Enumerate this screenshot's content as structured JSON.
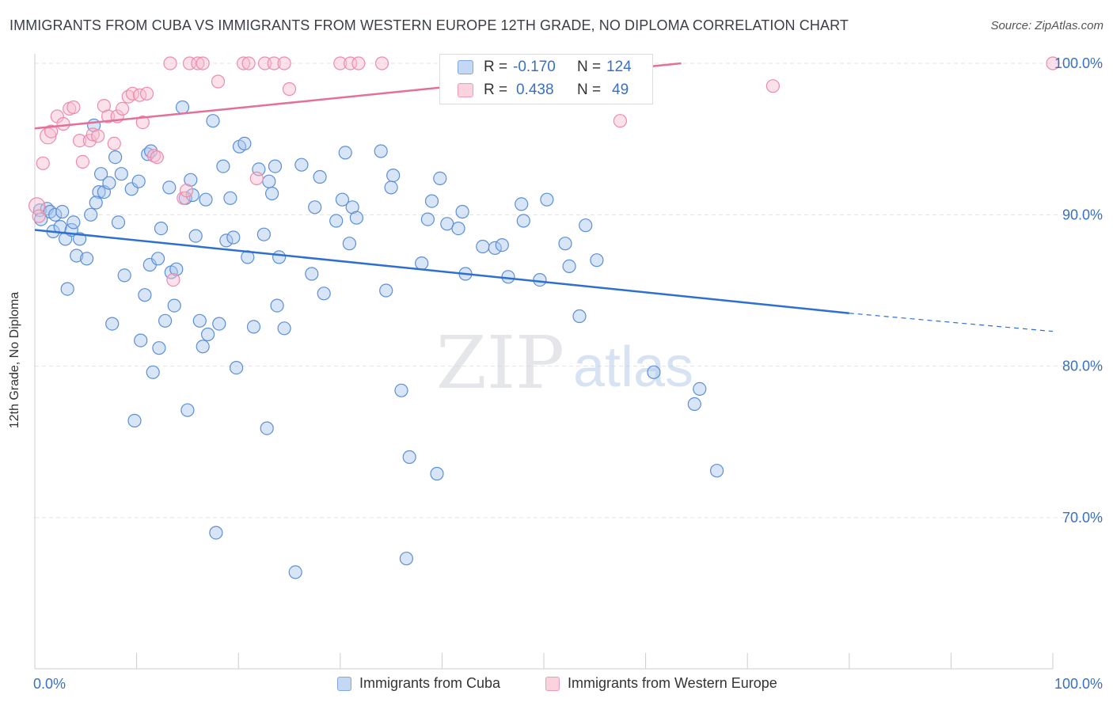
{
  "title": "IMMIGRANTS FROM CUBA VS IMMIGRANTS FROM WESTERN EUROPE 12TH GRADE, NO DIPLOMA CORRELATION CHART",
  "source": "Source: ZipAtlas.com",
  "watermark": {
    "zip": "ZIP",
    "atlas": "atlas"
  },
  "stats": {
    "r_label": "R =",
    "n_label": "N =",
    "rows": [
      {
        "r": "-0.170",
        "n": "124",
        "color": "#7fa8e0",
        "fill": "#c5d8f3"
      },
      {
        "r": "0.438",
        "n": "49",
        "color": "#f09ab5",
        "fill": "#fbd3df"
      }
    ]
  },
  "chart_data": {
    "type": "scatter",
    "title": "IMMIGRANTS FROM CUBA VS IMMIGRANTS FROM WESTERN EUROPE 12TH GRADE, NO DIPLOMA CORRELATION CHART",
    "xlabel": "",
    "ylabel": "12th Grade, No Diploma",
    "xlim": [
      0,
      100
    ],
    "ylim": [
      60,
      104
    ],
    "x_tick_labels": [
      "0.0%",
      "100.0%"
    ],
    "y_ticks": [
      70,
      80,
      90,
      100
    ],
    "y_tick_labels": [
      "70.0%",
      "80.0%",
      "90.0%",
      "100.0%"
    ],
    "grid": true,
    "legend_placement": "bottom",
    "series": [
      {
        "name": "Immigrants from Cuba",
        "color": "#5b8fd6",
        "fill": "#a9c6ee",
        "trend": {
          "x0": 0,
          "y0": 89.0,
          "x1": 80,
          "y1": 83.5,
          "dash_to_x": 100,
          "dash_to_y": 82.3
        },
        "points": [
          [
            0.5,
            90.3
          ],
          [
            0.6,
            89.7
          ],
          [
            1.2,
            90.4
          ],
          [
            1.5,
            90.2
          ],
          [
            1.8,
            88.9
          ],
          [
            2.0,
            90.0
          ],
          [
            2.5,
            89.2
          ],
          [
            2.7,
            90.2
          ],
          [
            3.0,
            88.4
          ],
          [
            3.2,
            85.1
          ],
          [
            3.6,
            89.0
          ],
          [
            3.8,
            89.5
          ],
          [
            4.1,
            87.3
          ],
          [
            4.4,
            88.4
          ],
          [
            5.1,
            87.1
          ],
          [
            5.5,
            90.0
          ],
          [
            5.8,
            95.9
          ],
          [
            6.3,
            91.5
          ],
          [
            6.5,
            92.7
          ],
          [
            6.8,
            91.5
          ],
          [
            7.3,
            92.1
          ],
          [
            7.6,
            82.8
          ],
          [
            7.9,
            93.8
          ],
          [
            8.2,
            89.5
          ],
          [
            8.5,
            92.7
          ],
          [
            8.8,
            86.0
          ],
          [
            9.5,
            91.7
          ],
          [
            9.8,
            76.4
          ],
          [
            10.2,
            92.2
          ],
          [
            10.4,
            81.7
          ],
          [
            10.8,
            84.7
          ],
          [
            11.1,
            94.0
          ],
          [
            11.3,
            86.7
          ],
          [
            11.6,
            79.6
          ],
          [
            12.1,
            87.1
          ],
          [
            12.2,
            81.2
          ],
          [
            12.4,
            89.1
          ],
          [
            12.8,
            83.0
          ],
          [
            13.2,
            91.8
          ],
          [
            13.4,
            86.2
          ],
          [
            13.7,
            84.0
          ],
          [
            13.9,
            86.4
          ],
          [
            14.5,
            97.1
          ],
          [
            14.8,
            91.1
          ],
          [
            15.0,
            77.1
          ],
          [
            15.3,
            92.3
          ],
          [
            15.5,
            91.3
          ],
          [
            15.8,
            88.6
          ],
          [
            16.2,
            83.0
          ],
          [
            16.5,
            81.3
          ],
          [
            16.8,
            91.0
          ],
          [
            17.0,
            82.1
          ],
          [
            17.5,
            96.2
          ],
          [
            17.8,
            69.0
          ],
          [
            18.1,
            82.8
          ],
          [
            18.5,
            93.2
          ],
          [
            18.8,
            88.3
          ],
          [
            19.2,
            91.1
          ],
          [
            19.5,
            88.5
          ],
          [
            19.8,
            79.9
          ],
          [
            20.1,
            94.5
          ],
          [
            20.6,
            94.7
          ],
          [
            20.9,
            87.2
          ],
          [
            21.5,
            82.6
          ],
          [
            22.0,
            93.0
          ],
          [
            22.5,
            88.7
          ],
          [
            22.8,
            75.9
          ],
          [
            23.0,
            92.2
          ],
          [
            23.3,
            91.4
          ],
          [
            23.6,
            93.2
          ],
          [
            23.8,
            84.0
          ],
          [
            24.0,
            87.2
          ],
          [
            24.5,
            82.5
          ],
          [
            25.6,
            66.4
          ],
          [
            26.2,
            93.3
          ],
          [
            27.2,
            86.1
          ],
          [
            27.5,
            90.5
          ],
          [
            28.0,
            92.5
          ],
          [
            28.4,
            84.8
          ],
          [
            29.6,
            89.6
          ],
          [
            30.2,
            91.0
          ],
          [
            30.5,
            94.1
          ],
          [
            30.9,
            88.1
          ],
          [
            31.2,
            90.5
          ],
          [
            31.6,
            89.8
          ],
          [
            34.0,
            94.2
          ],
          [
            34.5,
            85.0
          ],
          [
            35.0,
            91.8
          ],
          [
            35.2,
            92.6
          ],
          [
            36.0,
            78.4
          ],
          [
            36.5,
            67.3
          ],
          [
            36.8,
            74.0
          ],
          [
            38.0,
            86.8
          ],
          [
            38.6,
            89.7
          ],
          [
            39.0,
            90.9
          ],
          [
            39.5,
            72.9
          ],
          [
            39.8,
            92.4
          ],
          [
            40.5,
            89.4
          ],
          [
            41.6,
            89.1
          ],
          [
            42.0,
            90.2
          ],
          [
            42.3,
            86.1
          ],
          [
            44.0,
            87.9
          ],
          [
            45.2,
            87.8
          ],
          [
            45.9,
            88.0
          ],
          [
            46.5,
            85.9
          ],
          [
            47.8,
            90.7
          ],
          [
            48.0,
            89.6
          ],
          [
            49.6,
            85.7
          ],
          [
            50.3,
            91.0
          ],
          [
            52.1,
            88.1
          ],
          [
            52.5,
            86.6
          ],
          [
            53.5,
            83.3
          ],
          [
            54.1,
            89.3
          ],
          [
            55.2,
            87.0
          ],
          [
            60.8,
            79.6
          ],
          [
            64.8,
            77.5
          ],
          [
            65.3,
            78.5
          ],
          [
            67.0,
            73.1
          ],
          [
            6.0,
            90.8
          ],
          [
            11.4,
            94.2
          ]
        ]
      },
      {
        "name": "Immigrants from Western Europe",
        "color": "#ee8aab",
        "fill": "#f7bfd0",
        "trend": {
          "x0": 0,
          "y0": 95.7,
          "x1": 63.5,
          "y1": 100.0
        },
        "points": [
          [
            0.2,
            90.6
          ],
          [
            0.4,
            89.9
          ],
          [
            0.8,
            93.4
          ],
          [
            1.3,
            95.2
          ],
          [
            1.6,
            95.5
          ],
          [
            2.2,
            96.5
          ],
          [
            2.8,
            96.0
          ],
          [
            3.4,
            97.0
          ],
          [
            3.8,
            97.1
          ],
          [
            4.4,
            94.9
          ],
          [
            4.7,
            93.5
          ],
          [
            5.4,
            94.9
          ],
          [
            5.7,
            95.3
          ],
          [
            6.2,
            95.2
          ],
          [
            6.8,
            97.2
          ],
          [
            7.2,
            96.5
          ],
          [
            7.8,
            94.7
          ],
          [
            8.1,
            96.5
          ],
          [
            8.6,
            97.0
          ],
          [
            9.2,
            97.8
          ],
          [
            9.6,
            98.0
          ],
          [
            10.3,
            97.9
          ],
          [
            10.6,
            96.1
          ],
          [
            11.0,
            98.0
          ],
          [
            11.7,
            93.9
          ],
          [
            12.0,
            93.8
          ],
          [
            13.3,
            100.0
          ],
          [
            13.6,
            85.7
          ],
          [
            14.6,
            91.1
          ],
          [
            14.9,
            91.6
          ],
          [
            15.2,
            100.0
          ],
          [
            16.0,
            100.0
          ],
          [
            16.5,
            100.0
          ],
          [
            18.0,
            98.8
          ],
          [
            20.5,
            100.0
          ],
          [
            21.0,
            100.0
          ],
          [
            21.8,
            92.4
          ],
          [
            22.6,
            100.0
          ],
          [
            23.5,
            100.0
          ],
          [
            24.5,
            100.0
          ],
          [
            25.0,
            98.3
          ],
          [
            30.0,
            100.0
          ],
          [
            31.0,
            100.0
          ],
          [
            31.8,
            100.0
          ],
          [
            34.1,
            100.0
          ],
          [
            57.5,
            96.2
          ],
          [
            59.8,
            100.0
          ],
          [
            72.5,
            98.5
          ],
          [
            100.0,
            100.0
          ]
        ]
      }
    ]
  }
}
